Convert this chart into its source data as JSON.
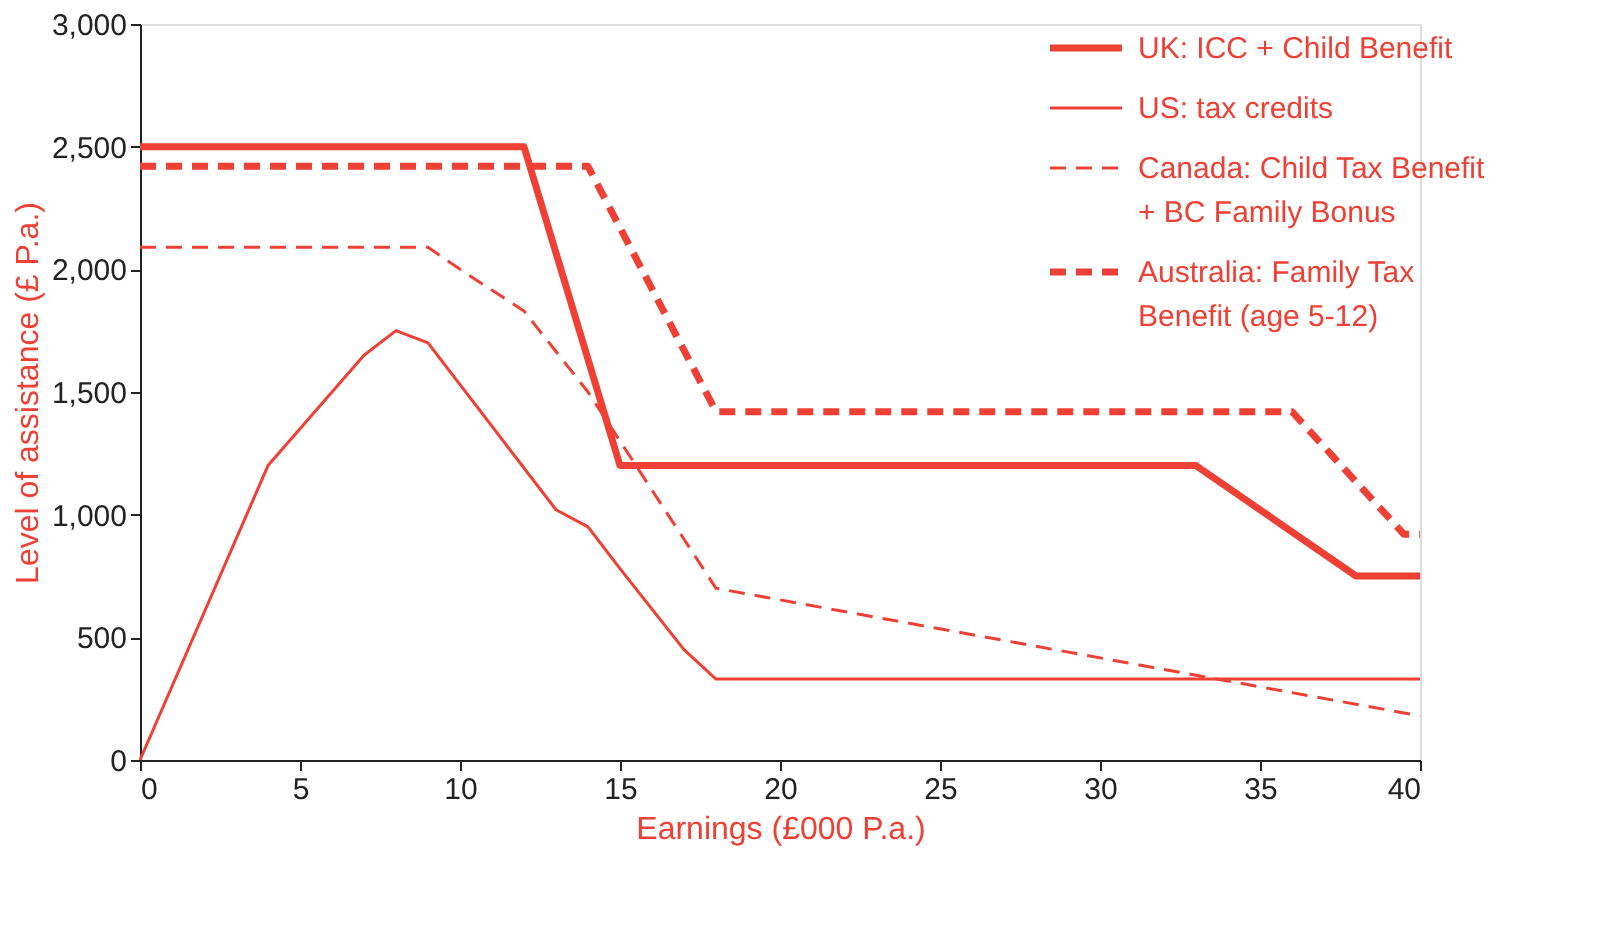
{
  "chart_data": {
    "type": "line",
    "xlabel": "Earnings (£000 P.a.)",
    "ylabel": "Level of assistance (£ P.a.)",
    "xlim": [
      0,
      40
    ],
    "ylim": [
      0,
      3000
    ],
    "xticks": [
      0,
      5,
      10,
      15,
      20,
      25,
      30,
      35,
      40
    ],
    "yticks": [
      {
        "value": 0,
        "label": "0"
      },
      {
        "value": 500,
        "label": "500"
      },
      {
        "value": 1000,
        "label": "1,000"
      },
      {
        "value": 1500,
        "label": "1,500"
      },
      {
        "value": 2000,
        "label": "2,000"
      },
      {
        "value": 2500,
        "label": "2,500"
      },
      {
        "value": 3000,
        "label": "3,000"
      }
    ],
    "grid": false,
    "legend": "top right",
    "marker": "none",
    "series": [
      {
        "name": "UK: ICC + Child Benefit",
        "color": "#ee4035",
        "line_style": "solid",
        "x": [
          0,
          12,
          15,
          33,
          38,
          40
        ],
        "values": [
          2500,
          2500,
          1200,
          1200,
          750,
          750
        ]
      },
      {
        "name": "US: tax credits",
        "color": "#ee4035",
        "line_style": "solid",
        "x": [
          0,
          4,
          7,
          8,
          9,
          13,
          14,
          15,
          17,
          18,
          40
        ],
        "values": [
          0,
          1200,
          1650,
          1750,
          1700,
          1020,
          950,
          780,
          450,
          330,
          330
        ]
      },
      {
        "name": "Canada: Child Tax Benefit + BC Family Bonus",
        "color": "#ee4035",
        "line_style": "dashed",
        "x": [
          0,
          9,
          10,
          12,
          14,
          16,
          18,
          40
        ],
        "values": [
          2090,
          2090,
          2000,
          1830,
          1500,
          1100,
          700,
          180
        ]
      },
      {
        "name": "Australia: Family Tax Benefit (age 5-12)",
        "color": "#ee4035",
        "line_style": "dashed",
        "x": [
          0,
          14,
          18,
          36,
          39.5,
          40
        ],
        "values": [
          2420,
          2420,
          1420,
          1420,
          920,
          920
        ]
      }
    ]
  }
}
